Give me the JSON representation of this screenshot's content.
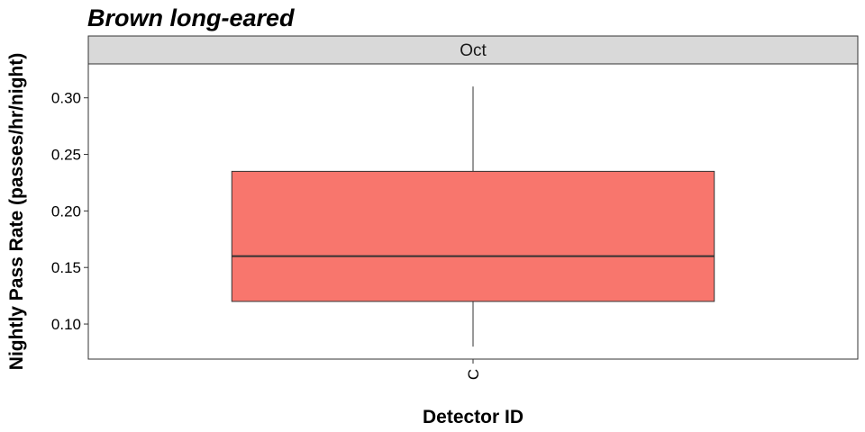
{
  "chart_data": {
    "type": "boxplot",
    "title": "Brown long-eared",
    "facet": "Oct",
    "xlabel": "Detector ID",
    "ylabel": "Nightly Pass Rate (passes/hr/night)",
    "ylim": [
      0.069,
      0.33
    ],
    "yticks": [
      0.1,
      0.15,
      0.2,
      0.25,
      0.3
    ],
    "ytick_labels": [
      "0.10",
      "0.15",
      "0.20",
      "0.25",
      "0.30"
    ],
    "categories": [
      "C"
    ],
    "boxes": [
      {
        "category": "C",
        "min": 0.08,
        "q1": 0.12,
        "median": 0.16,
        "q3": 0.235,
        "max": 0.31
      }
    ],
    "box_fill": "#F8766D",
    "box_stroke": "#333333",
    "strip_fill": "#D9D9D9",
    "grid": false
  }
}
